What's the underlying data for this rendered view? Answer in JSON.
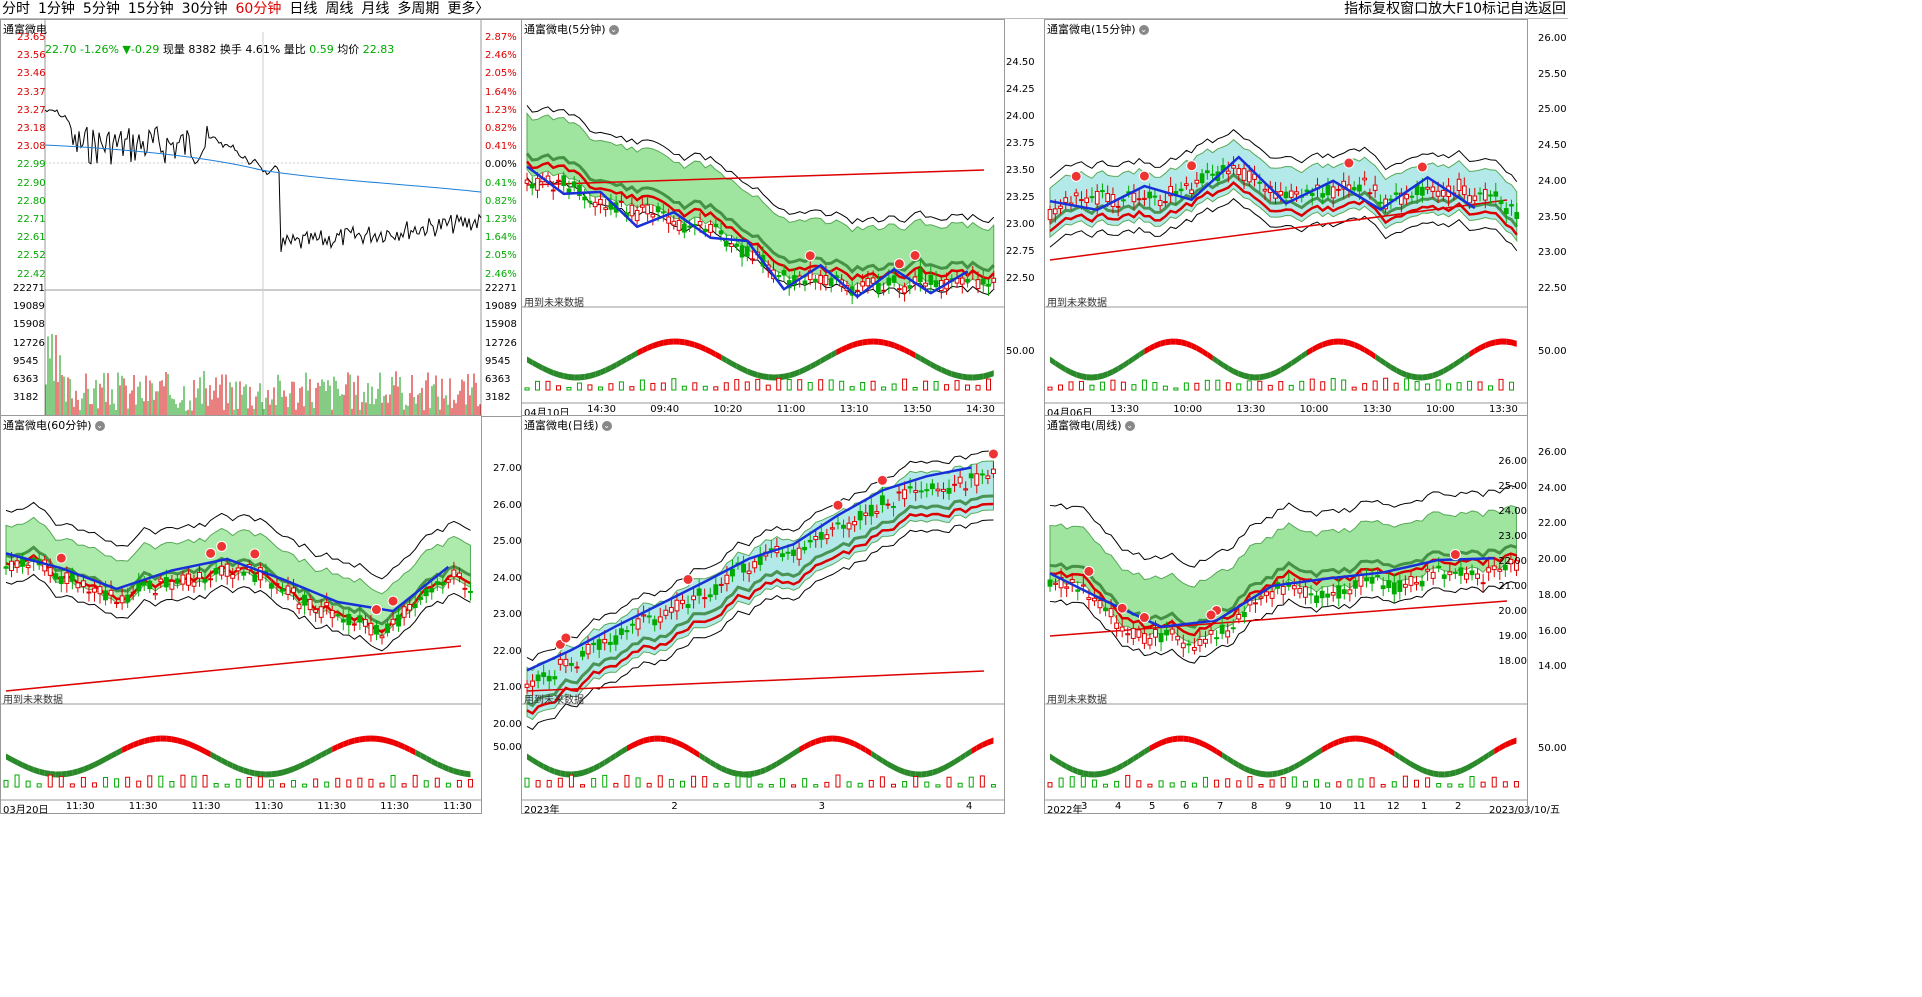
{
  "toolbar": {
    "periods": [
      "分时",
      "1分钟",
      "5分钟",
      "15分钟",
      "30分钟",
      "60分钟",
      "日线",
      "周线",
      "月线",
      "多周期",
      "更多〉"
    ],
    "active_period": "60分钟",
    "right_items": [
      "指标",
      "复权",
      "窗口",
      "放大",
      "F10",
      "标记",
      "自选",
      "返回"
    ]
  },
  "intraday": {
    "title": "通富微电",
    "quote": {
      "price": "22.70",
      "pct": "-1.26%",
      "change": "▼-0.29",
      "volume_label": "现量",
      "volume": "8382",
      "turnover_label": "换手",
      "turnover": "4.61%",
      "ratio_label": "量比",
      "ratio": "0.59",
      "avg_label": "均价",
      "avg": "22.83"
    },
    "price_ticks": [
      "23.65",
      "23.56",
      "23.46",
      "23.37",
      "23.27",
      "23.18",
      "23.08",
      "22.99",
      "22.90",
      "22.80",
      "22.71",
      "22.61",
      "22.52",
      "22.42"
    ],
    "pct_ticks": [
      "2.87%",
      "2.46%",
      "2.05%",
      "1.64%",
      "1.23%",
      "0.82%",
      "0.41%",
      "0.00%",
      "0.41%",
      "0.82%",
      "1.23%",
      "1.64%",
      "2.05%",
      "2.46%"
    ],
    "vol_ticks": [
      "22271",
      "19089",
      "15908",
      "12726",
      "9545",
      "6363",
      "3182"
    ],
    "colors": {
      "price_line": "#000000",
      "avg_line": "#1e7fd6",
      "up": "#d00000",
      "down": "#0a9a0a"
    }
  },
  "panels": {
    "m5": {
      "title": "通富微电(5分钟)",
      "yticks": [],
      "future": "用到未来数据",
      "osc_label": "",
      "time_labels": [
        "04月10日",
        "14:30",
        "09:40",
        "10:20",
        "11:00",
        "13:10",
        "13:50",
        "14:30"
      ]
    },
    "m15": {
      "title": "通富微电(15分钟)",
      "yticks": [
        "24.50",
        "24.25",
        "24.00",
        "23.75",
        "23.50",
        "23.25",
        "23.00",
        "22.75",
        "22.50"
      ],
      "future": "用到未来数据",
      "osc_label": "50.00",
      "time_labels": [
        "04月06日",
        "13:30",
        "10:00",
        "13:30",
        "10:00",
        "13:30",
        "10:00",
        "13:30"
      ]
    },
    "m60": {
      "title": "通富微电(60分钟)",
      "yticks": [],
      "future": "用到未来数据",
      "osc_label": "",
      "time_labels": [
        "03月20日",
        "11:30",
        "11:30",
        "11:30",
        "11:30",
        "11:30",
        "11:30",
        "11:30"
      ]
    },
    "day": {
      "title": "通富微电(日线)",
      "yticks": [
        "27.00",
        "26.00",
        "25.00",
        "24.00",
        "23.00",
        "22.00",
        "21.00",
        "20.00"
      ],
      "future": "用到未来数据",
      "osc_label": "50.00",
      "time_labels": [
        "2023年",
        "2",
        "3",
        "4"
      ]
    },
    "week": {
      "title": "通富微电(周线)",
      "yticks": [
        "26.00",
        "25.00",
        "24.00",
        "23.00",
        "22.00",
        "21.00",
        "20.00",
        "19.00",
        "18.00"
      ],
      "future": "用到未来数据",
      "osc_label": "",
      "time_labels": [
        "2022年",
        "3",
        "4",
        "5",
        "6",
        "7",
        "8",
        "9",
        "10",
        "11",
        "12",
        "1",
        "2",
        "2023/03/10/五"
      ]
    },
    "right_axis": {
      "top_ticks": [
        "26.00",
        "25.50",
        "25.00",
        "24.50",
        "24.00",
        "23.50",
        "23.00",
        "22.50"
      ],
      "top_osc": "50.00",
      "bottom_ticks": [
        "26.00",
        "24.00",
        "22.00",
        "20.00",
        "18.00",
        "16.00",
        "14.00"
      ],
      "bottom_osc": "50.00"
    }
  }
}
